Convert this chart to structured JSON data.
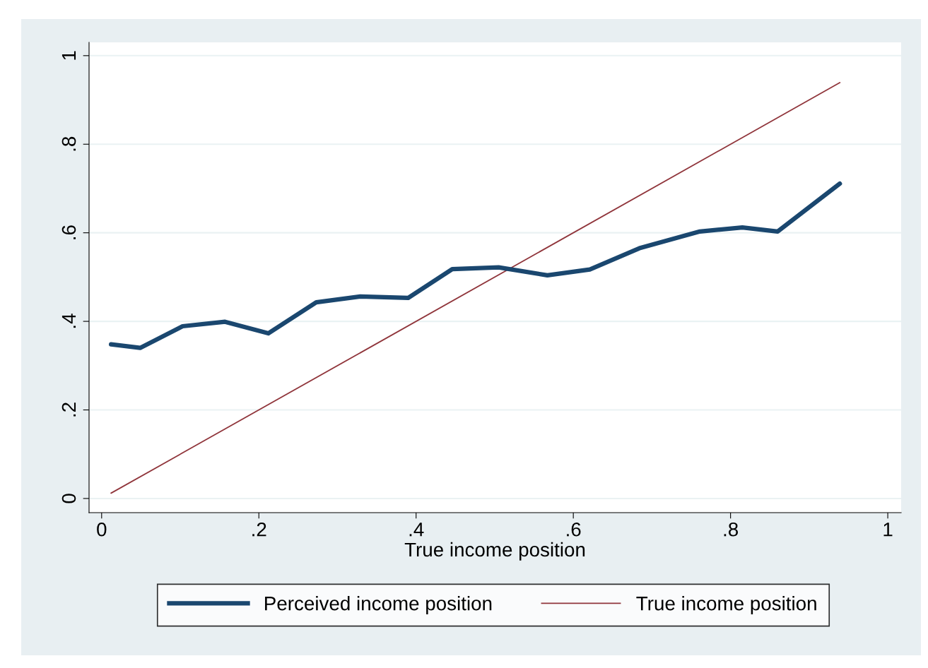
{
  "chart_data": {
    "type": "line",
    "xlabel": "True income position",
    "xlim": [
      -0.016,
      1.017
    ],
    "ylim": [
      -0.032,
      1.03
    ],
    "xticks": [
      0,
      {
        "value": 0.2,
        "label": ".2"
      },
      {
        "value": 0.4,
        "label": ".4"
      },
      {
        "value": 0.6,
        "label": ".6"
      },
      {
        "value": 0.8,
        "label": ".8"
      },
      1
    ],
    "yticks": [
      0,
      {
        "value": 0.2,
        "label": ".2"
      },
      {
        "value": 0.4,
        "label": ".4"
      },
      {
        "value": 0.6,
        "label": ".6"
      },
      {
        "value": 0.8,
        "label": ".8"
      },
      1
    ],
    "grid": "y",
    "legend": "bottom",
    "marker": "none",
    "line_style": "solid",
    "series": [
      {
        "name": "Perceived income position",
        "color": "#1a476f",
        "x": [
          0.012,
          0.049,
          0.103,
          0.157,
          0.212,
          0.273,
          0.329,
          0.39,
          0.446,
          0.505,
          0.567,
          0.621,
          0.684,
          0.761,
          0.815,
          0.86,
          0.939
        ],
        "values": [
          0.348,
          0.34,
          0.389,
          0.399,
          0.373,
          0.443,
          0.456,
          0.453,
          0.518,
          0.522,
          0.504,
          0.517,
          0.565,
          0.603,
          0.612,
          0.603,
          0.711
        ]
      },
      {
        "name": "True income position",
        "color": "#90353b",
        "x": [
          0.012,
          0.939
        ],
        "values": [
          0.012,
          0.939
        ]
      }
    ]
  }
}
